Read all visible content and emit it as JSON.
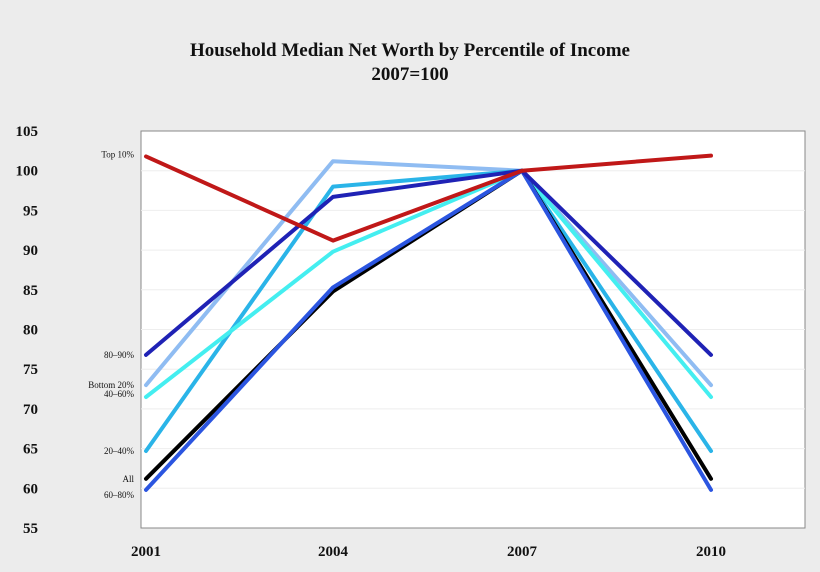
{
  "chart_data": {
    "type": "line",
    "title": "Household Median Net Worth by Percentile of Income",
    "subtitle": "2007=100",
    "xlabel": "",
    "ylabel": "",
    "x": [
      "2001",
      "2004",
      "2007",
      "2010"
    ],
    "ylim": [
      55,
      105
    ],
    "yticks": [
      55,
      60,
      65,
      70,
      75,
      80,
      85,
      90,
      95,
      100,
      105
    ],
    "grid": true,
    "series": [
      {
        "name": "All",
        "color": "#000000",
        "values": [
          61.2,
          84.8,
          100,
          61.2
        ]
      },
      {
        "name": "60–80%",
        "color": "#2b55e0",
        "values": [
          59.8,
          85.3,
          100,
          59.8
        ]
      },
      {
        "name": "20–40%",
        "color": "#2ab4e8",
        "values": [
          64.7,
          98.0,
          100,
          64.7
        ]
      },
      {
        "name": "40–60%",
        "color": "#44eef0",
        "values": [
          71.5,
          89.8,
          100,
          71.5
        ]
      },
      {
        "name": "Bottom 20%",
        "color": "#8fbcf2",
        "values": [
          73.0,
          101.2,
          100,
          73.0
        ]
      },
      {
        "name": "80–90%",
        "color": "#1f22b5",
        "values": [
          76.8,
          96.7,
          100,
          76.8
        ]
      },
      {
        "name": "Top 10%",
        "color": "#c01818",
        "values": [
          101.8,
          91.2,
          100,
          101.9
        ]
      }
    ]
  }
}
